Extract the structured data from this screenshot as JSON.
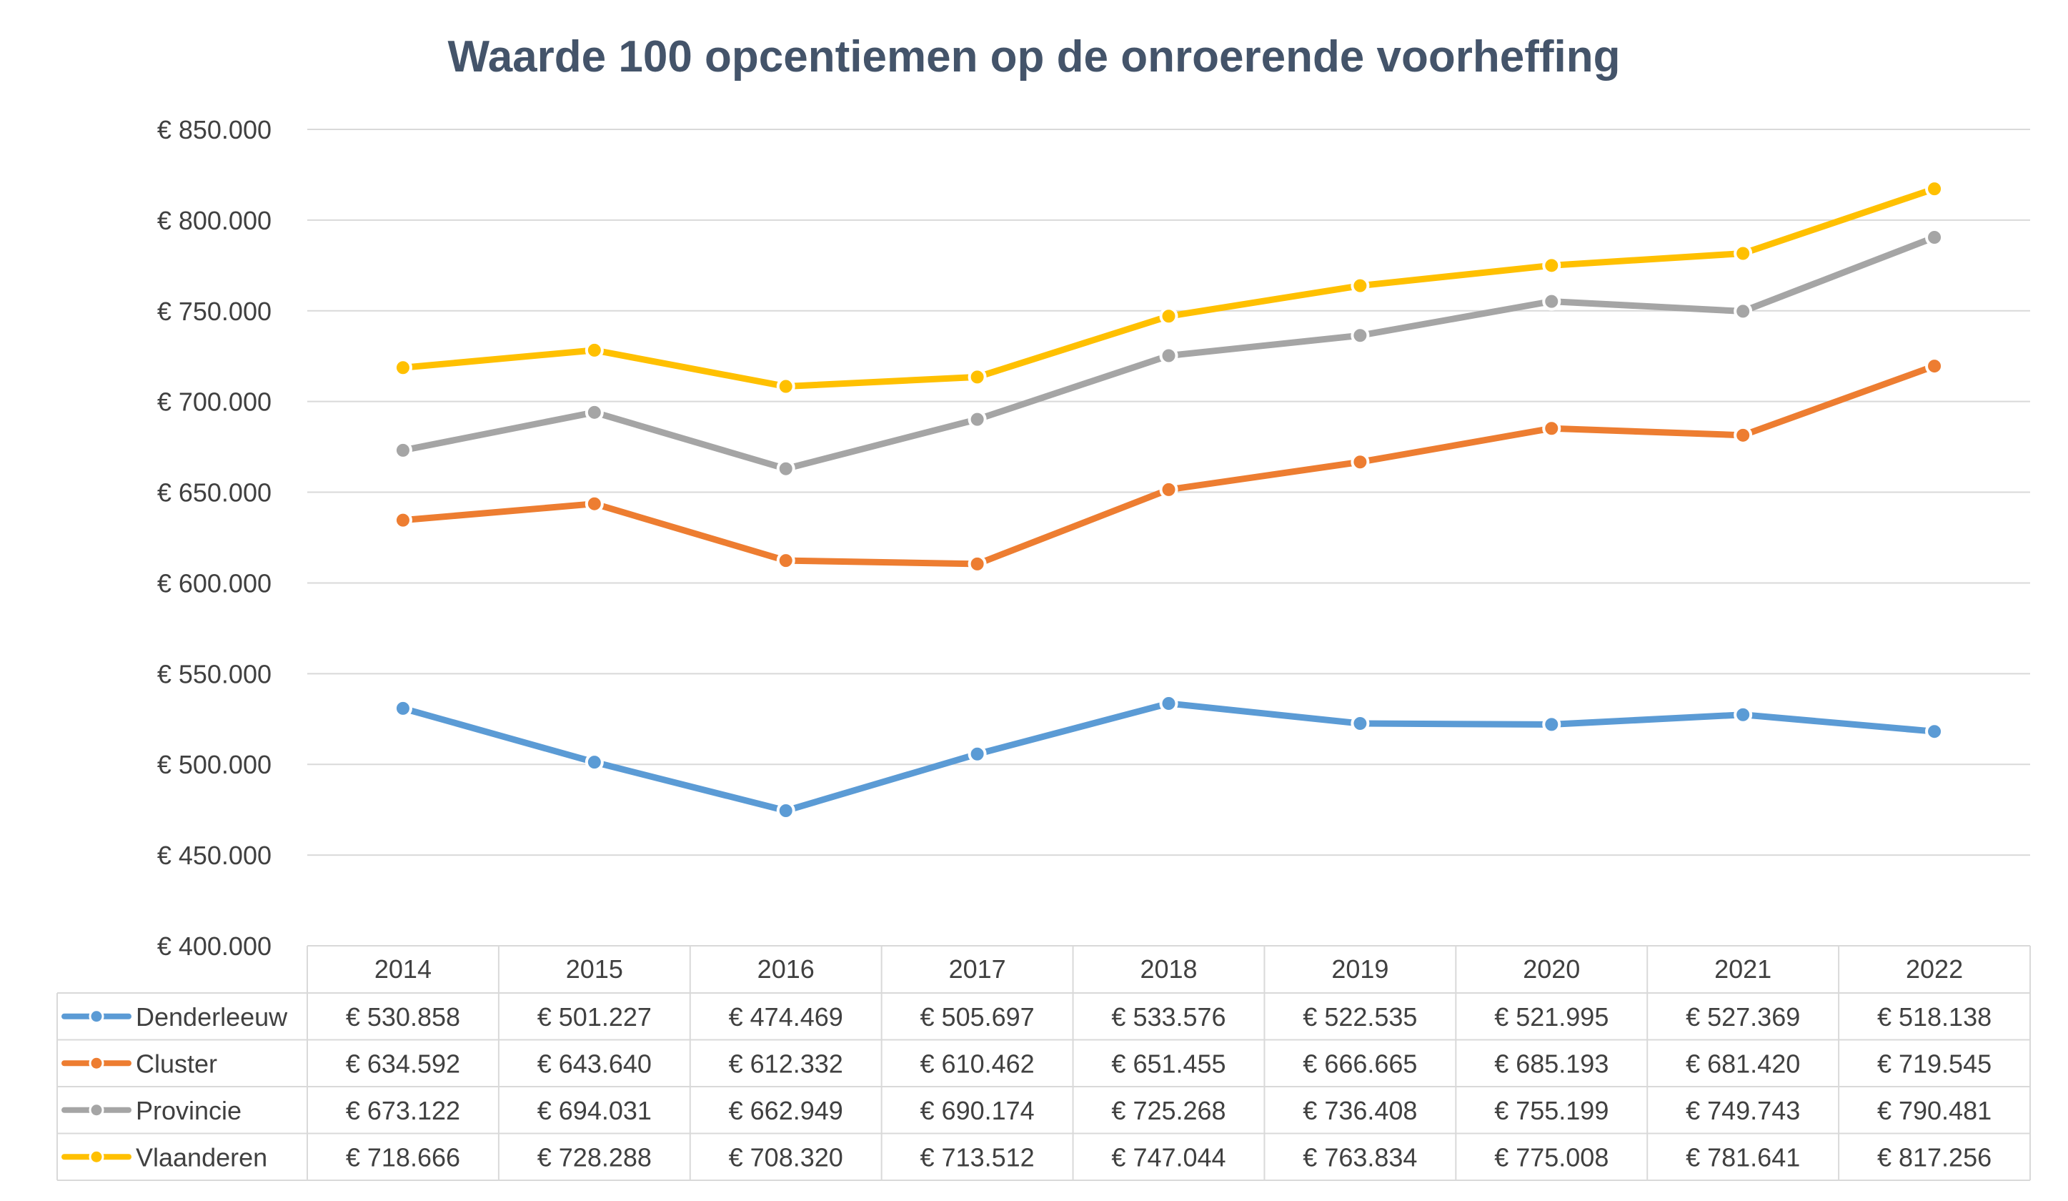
{
  "chart_data": {
    "type": "line",
    "title": "Waarde 100 opcentiemen op de onroerende voorheffing",
    "xlabel": "",
    "ylabel": "",
    "categories": [
      "2014",
      "2015",
      "2016",
      "2017",
      "2018",
      "2019",
      "2020",
      "2021",
      "2022"
    ],
    "ylim": [
      400000,
      850000
    ],
    "ystep": 50000,
    "y_tick_labels": [
      "€ 400.000",
      "€ 450.000",
      "€ 500.000",
      "€ 550.000",
      "€ 600.000",
      "€ 650.000",
      "€ 700.000",
      "€ 750.000",
      "€ 800.000",
      "€ 850.000"
    ],
    "grid": true,
    "legend": "data-table-below",
    "series": [
      {
        "name": "Denderleeuw",
        "color": "#5B9BD5",
        "values": [
          530858,
          501227,
          474469,
          505697,
          533576,
          522535,
          521995,
          527369,
          518138
        ],
        "labels": [
          "€ 530.858",
          "€ 501.227",
          "€ 474.469",
          "€ 505.697",
          "€ 533.576",
          "€ 522.535",
          "€ 521.995",
          "€ 527.369",
          "€ 518.138"
        ]
      },
      {
        "name": "Cluster",
        "color": "#ED7D31",
        "values": [
          634592,
          643640,
          612332,
          610462,
          651455,
          666665,
          685193,
          681420,
          719545
        ],
        "labels": [
          "€ 634.592",
          "€ 643.640",
          "€ 612.332",
          "€ 610.462",
          "€ 651.455",
          "€ 666.665",
          "€ 685.193",
          "€ 681.420",
          "€ 719.545"
        ]
      },
      {
        "name": "Provincie",
        "color": "#A5A5A5",
        "values": [
          673122,
          694031,
          662949,
          690174,
          725268,
          736408,
          755199,
          749743,
          790481
        ],
        "labels": [
          "€ 673.122",
          "€ 694.031",
          "€ 662.949",
          "€ 690.174",
          "€ 725.268",
          "€ 736.408",
          "€ 755.199",
          "€ 749.743",
          "€ 790.481"
        ]
      },
      {
        "name": "Vlaanderen",
        "color": "#FFC000",
        "values": [
          718666,
          728288,
          708320,
          713512,
          747044,
          763834,
          775008,
          781641,
          817256
        ],
        "labels": [
          "€ 718.666",
          "€ 728.288",
          "€ 708.320",
          "€ 713.512",
          "€ 747.044",
          "€ 763.834",
          "€ 775.008",
          "€ 781.641",
          "€ 817.256"
        ]
      }
    ]
  }
}
